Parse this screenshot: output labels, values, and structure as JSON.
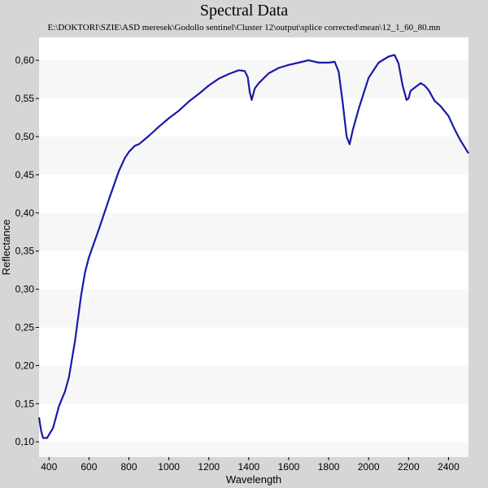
{
  "chart_data": {
    "type": "line",
    "title": "Spectral Data",
    "subtitle": "E:\\DOKTORI\\SZIE\\ASD meresek\\Godollo sentinel\\Cluster 12\\output\\splice corrected\\mean\\12_1_60_80.mn",
    "xlabel": "Wavelength",
    "ylabel": "Reflectance",
    "xlim": [
      350,
      2500
    ],
    "ylim": [
      0.08,
      0.63
    ],
    "xticks": [
      400,
      600,
      800,
      1000,
      1200,
      1400,
      1600,
      1800,
      2000,
      2200,
      2400
    ],
    "yticks": [
      "0,10",
      "0,15",
      "0,20",
      "0,25",
      "0,30",
      "0,35",
      "0,40",
      "0,45",
      "0,50",
      "0,55",
      "0,60"
    ],
    "grid": "horizontal alternating bands",
    "legend": "none",
    "line_color": "#1a1aa6",
    "series": [
      {
        "x": [
          350,
          360,
          370,
          390,
          420,
          450,
          480,
          500,
          530,
          560,
          580,
          600,
          650,
          700,
          750,
          780,
          800,
          830,
          850,
          900,
          950,
          1000,
          1050,
          1100,
          1150,
          1200,
          1250,
          1300,
          1350,
          1380,
          1395,
          1405,
          1415,
          1430,
          1450,
          1500,
          1550,
          1600,
          1650,
          1700,
          1750,
          1800,
          1830,
          1850,
          1870,
          1890,
          1905,
          1920,
          1950,
          2000,
          2050,
          2100,
          2130,
          2150,
          2170,
          2190,
          2200,
          2210,
          2230,
          2260,
          2280,
          2300,
          2330,
          2360,
          2400,
          2430,
          2460,
          2500
        ],
        "values": [
          0.132,
          0.115,
          0.105,
          0.105,
          0.118,
          0.147,
          0.166,
          0.185,
          0.232,
          0.291,
          0.322,
          0.342,
          0.379,
          0.418,
          0.455,
          0.472,
          0.48,
          0.488,
          0.49,
          0.501,
          0.513,
          0.524,
          0.534,
          0.546,
          0.556,
          0.567,
          0.576,
          0.582,
          0.587,
          0.586,
          0.578,
          0.558,
          0.548,
          0.563,
          0.57,
          0.583,
          0.59,
          0.594,
          0.597,
          0.6,
          0.597,
          0.597,
          0.598,
          0.585,
          0.545,
          0.5,
          0.49,
          0.508,
          0.536,
          0.577,
          0.597,
          0.605,
          0.607,
          0.596,
          0.567,
          0.548,
          0.55,
          0.56,
          0.564,
          0.57,
          0.567,
          0.561,
          0.547,
          0.54,
          0.527,
          0.51,
          0.495,
          0.478
        ]
      }
    ]
  }
}
